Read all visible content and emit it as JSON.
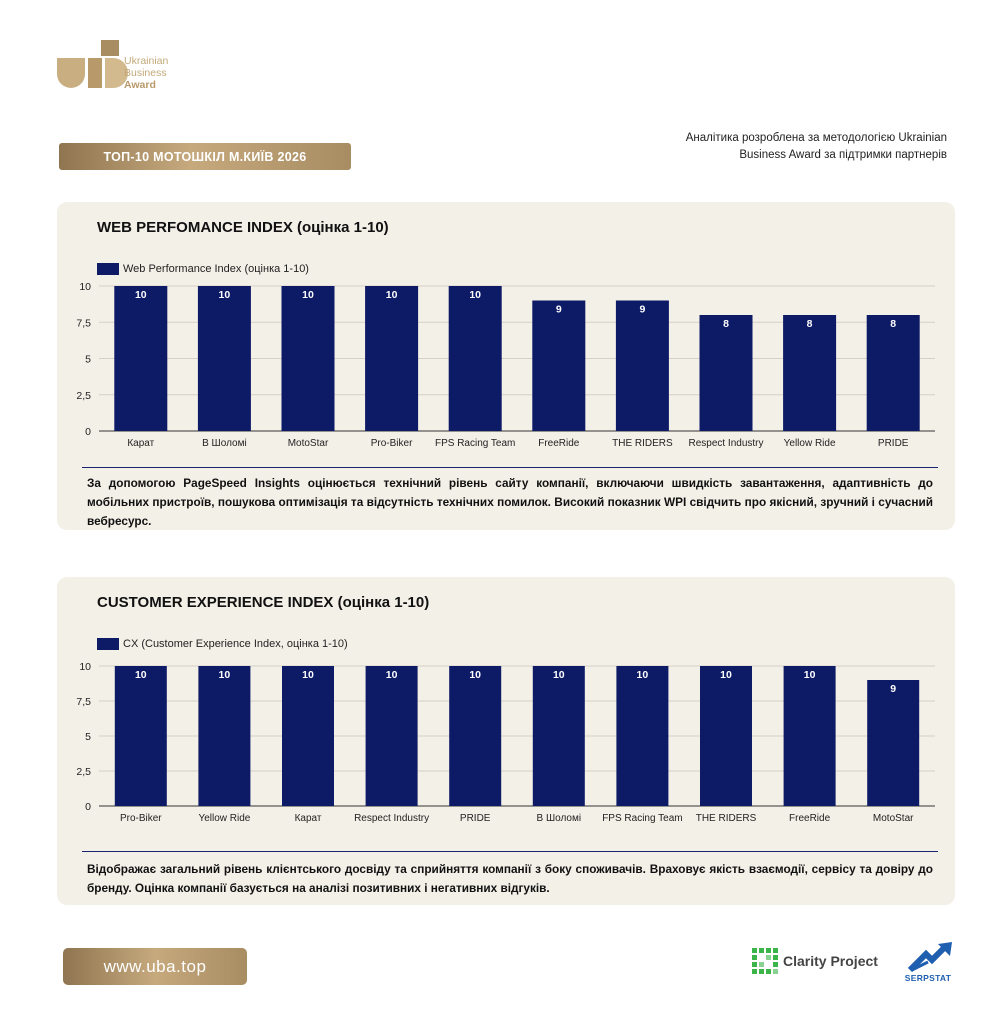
{
  "header": {
    "logo_line1": "Ukrainian",
    "logo_line2": "Business",
    "logo_line3": "Award",
    "title": "ТОП-10 МОТОШКІЛ М.КИЇВ 2026",
    "credit_line1": "Аналітика розроблена за методологією Ukrainian",
    "credit_line2": "Business Award за підтримки партнерів"
  },
  "colors": {
    "bar": "#0d1a66",
    "gold": "#b8996a",
    "panel": "#f3f0e8"
  },
  "chart_data": [
    {
      "type": "bar",
      "title": "WEB PERFOMANCE INDEX (оцінка 1-10)",
      "legend": "Web Performance Index (оцінка 1-10)",
      "legend_position": "top-left",
      "grid": true,
      "ylim": [
        0,
        10
      ],
      "yticks": [
        "0",
        "2,5",
        "5",
        "7,5",
        "10"
      ],
      "categories": [
        "Карат",
        "В Шоломі",
        "MotoStar",
        "Pro-Biker",
        "FPS Racing Team",
        "FreeRide",
        "THE RIDERS",
        "Respect Industry",
        "Yellow Ride",
        "PRIDE"
      ],
      "values": [
        10,
        10,
        10,
        10,
        10,
        9,
        9,
        8,
        8,
        8
      ],
      "description": "За допомогою PageSpeed Insights оцінюється технічний рівень сайту компанії, включаючи швидкість завантаження, адаптивність до мобільних пристроїв, пошукова оптимізація та відсутність технічних помилок. Високий показник WPI свідчить про якісний, зручний і сучасний вебресурс."
    },
    {
      "type": "bar",
      "title": "CUSTOMER EXPERIENCE INDEX (оцінка 1-10)",
      "legend": "CX (Customer Experience Index, оцінка 1-10)",
      "legend_position": "top-left",
      "grid": true,
      "ylim": [
        0,
        10
      ],
      "yticks": [
        "0",
        "2,5",
        "5",
        "7,5",
        "10"
      ],
      "categories": [
        "Pro-Biker",
        "Yellow Ride",
        "Карат",
        "Respect Industry",
        "PRIDE",
        "В Шоломі",
        "FPS Racing Team",
        "THE RIDERS",
        "FreeRide",
        "MotoStar"
      ],
      "values": [
        10,
        10,
        10,
        10,
        10,
        10,
        10,
        10,
        10,
        9
      ],
      "description": "Відображає загальний рівень клієнтського досвіду та сприйняття компанії з боку споживачів. Враховує якість взаємодії, сервісу та довіру до бренду. Оцінка компанії базується на аналізі позитивних і негативних відгуків."
    }
  ],
  "footer": {
    "website": "www.uba.top",
    "partner1": "Clarity Project",
    "partner2": "SERPSTAT"
  }
}
